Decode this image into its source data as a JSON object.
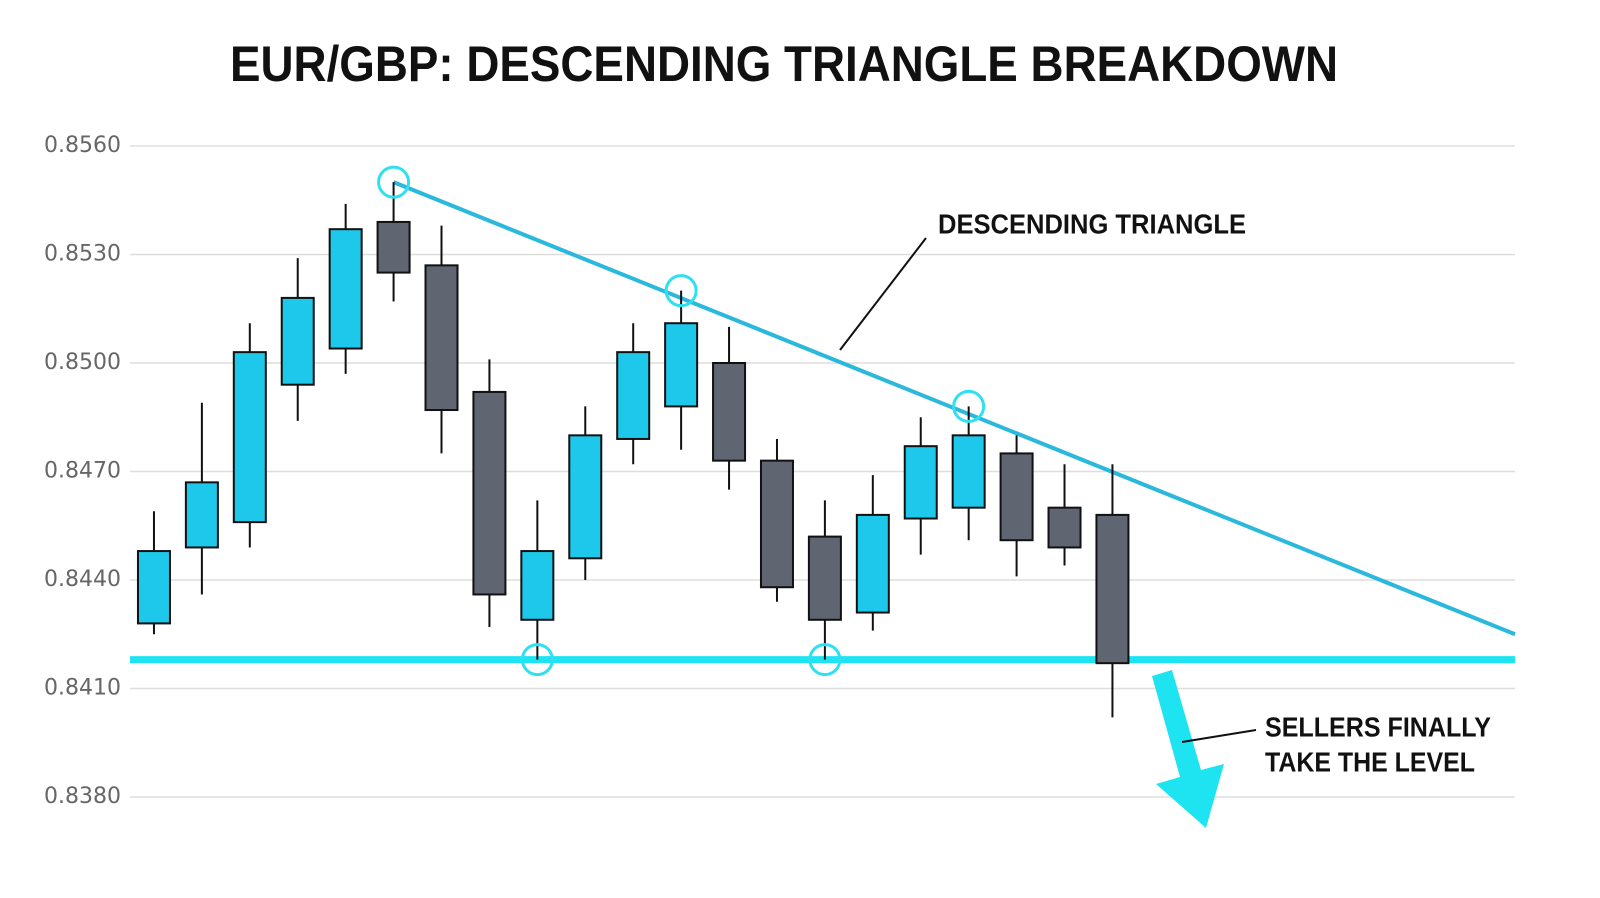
{
  "chart_data": {
    "type": "candlestick",
    "title": "EUR/GBP: DESCENDING TRIANGLE BREAKDOWN",
    "categories": [
      null,
      null,
      null,
      null,
      null,
      null,
      null,
      null,
      null,
      null,
      null,
      null,
      null,
      null,
      null,
      null,
      null,
      null,
      null,
      null,
      null
    ],
    "open": [
      0.8428,
      0.8449,
      0.8456,
      0.8494,
      0.8504,
      0.8539,
      0.8527,
      0.8492,
      0.8429,
      0.8446,
      0.8479,
      0.8488,
      0.85,
      0.8473,
      0.8452,
      0.8431,
      0.8457,
      0.846,
      0.8475,
      0.846,
      0.8458
    ],
    "high": [
      0.8459,
      0.8489,
      0.8511,
      0.8529,
      0.8544,
      0.855,
      0.8538,
      0.8501,
      0.8462,
      0.8488,
      0.8511,
      0.852,
      0.851,
      0.8479,
      0.8462,
      0.8469,
      0.8485,
      0.8488,
      0.848,
      0.8472,
      0.8472
    ],
    "low": [
      0.8425,
      0.8436,
      0.8449,
      0.8484,
      0.8497,
      0.8517,
      0.8475,
      0.8427,
      0.8418,
      0.844,
      0.8472,
      0.8476,
      0.8465,
      0.8434,
      0.8418,
      0.8426,
      0.8447,
      0.8451,
      0.8441,
      0.8444,
      0.8402
    ],
    "close": [
      0.8448,
      0.8467,
      0.8503,
      0.8518,
      0.8537,
      0.8525,
      0.8487,
      0.8436,
      0.8448,
      0.848,
      0.8503,
      0.8511,
      0.8473,
      0.8438,
      0.8429,
      0.8458,
      0.8477,
      0.848,
      0.8451,
      0.8449,
      0.8417
    ],
    "up_color": "#1ec8ea",
    "down_color": "#606671",
    "xlim": [
      -0.5,
      28.4
    ],
    "ylim": [
      0.838,
      0.856
    ],
    "yticks": [
      {
        "value": 0.856,
        "label": "0.8560"
      },
      {
        "value": 0.853,
        "label": "0.8530"
      },
      {
        "value": 0.85,
        "label": "0.8500"
      },
      {
        "value": 0.847,
        "label": "0.8470"
      },
      {
        "value": 0.844,
        "label": "0.8440"
      },
      {
        "value": 0.841,
        "label": "0.8410"
      },
      {
        "value": 0.838,
        "label": "0.8380"
      }
    ],
    "grid": true,
    "support": 0.8418,
    "resistance": {
      "x": [
        5,
        28.4
      ],
      "y": [
        0.855,
        0.8425
      ]
    },
    "highlighted_highs": [
      5,
      11,
      17
    ],
    "highlighted_lows": [
      8,
      14
    ],
    "annotations": [
      [
        "DESCENDING TRIANGLE"
      ],
      [
        "SELLERS FINALLY",
        "TAKE THE LEVEL"
      ]
    ]
  }
}
